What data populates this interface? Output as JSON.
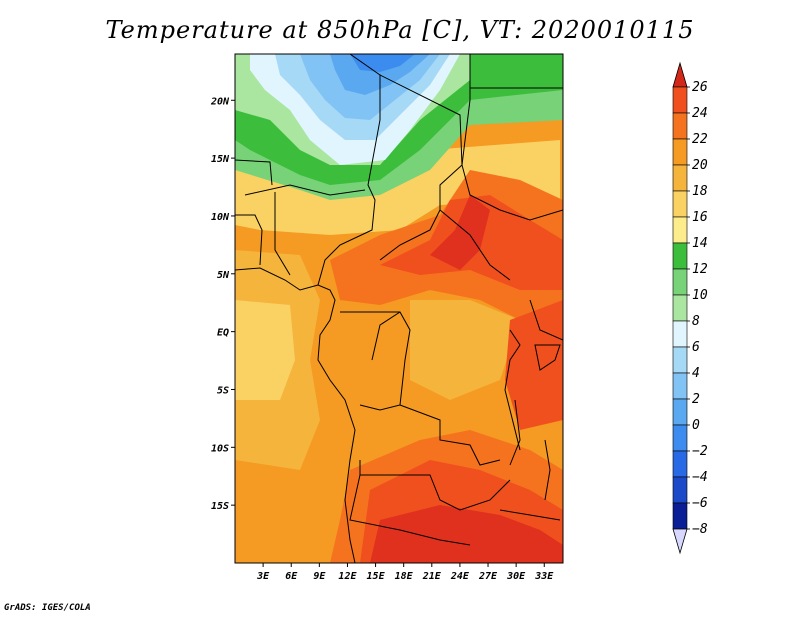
{
  "title": "Temperature at 850hPa [C], VT: 2020010115",
  "credit": "GrADS: IGES/COLA",
  "map": {
    "projection": "lat-lon",
    "lon_range_deg": [
      0,
      35
    ],
    "lat_range_deg": [
      -20,
      24
    ],
    "lat_ticks": [
      {
        "value": 20,
        "label": "20N"
      },
      {
        "value": 15,
        "label": "15N"
      },
      {
        "value": 10,
        "label": "10N"
      },
      {
        "value": 5,
        "label": "5N"
      },
      {
        "value": 0,
        "label": "EQ"
      },
      {
        "value": -5,
        "label": "5S"
      },
      {
        "value": -10,
        "label": "10S"
      },
      {
        "value": -15,
        "label": "15S"
      }
    ],
    "lon_ticks": [
      {
        "value": 3,
        "label": "3E"
      },
      {
        "value": 6,
        "label": "6E"
      },
      {
        "value": 9,
        "label": "9E"
      },
      {
        "value": 12,
        "label": "12E"
      },
      {
        "value": 15,
        "label": "15E"
      },
      {
        "value": 18,
        "label": "18E"
      },
      {
        "value": 21,
        "label": "21E"
      },
      {
        "value": 24,
        "label": "24E"
      },
      {
        "value": 27,
        "label": "27E"
      },
      {
        "value": 30,
        "label": "30E"
      },
      {
        "value": 33,
        "label": "33E"
      }
    ]
  },
  "colorbar": {
    "levels": [
      "26",
      "24",
      "22",
      "20",
      "18",
      "16",
      "14",
      "12",
      "10",
      "8",
      "6",
      "4",
      "2",
      "0",
      "−2",
      "−4",
      "−6",
      "−8"
    ],
    "colors": [
      "#e0301e",
      "#f0501e",
      "#f5731e",
      "#f59a23",
      "#f5b43c",
      "#fad264",
      "#fcec8c",
      "#3cbe3c",
      "#78d278",
      "#aae6a0",
      "#e1f5ff",
      "#a6d9f5",
      "#82c3f5",
      "#5aa9f0",
      "#3c8cf0",
      "#2869e6",
      "#1a4ac8",
      "#0a1e96",
      "#000064"
    ],
    "top_arrow_color": "#d22819",
    "bottom_arrow_color": "#d8d8ff"
  }
}
